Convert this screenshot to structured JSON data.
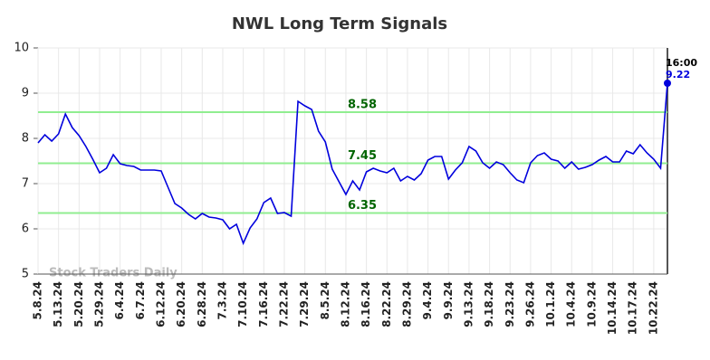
{
  "chart_data": {
    "type": "line",
    "title": "NWL Long Term Signals",
    "categories": [
      "5.8.24",
      null,
      null,
      "5.13.24",
      null,
      null,
      "5.20.24",
      null,
      null,
      "5.29.24",
      null,
      null,
      "6.4.24",
      null,
      null,
      "6.7.24",
      null,
      null,
      "6.12.24",
      null,
      null,
      "6.20.24",
      null,
      null,
      "6.28.24",
      null,
      null,
      "7.3.24",
      null,
      null,
      "7.10.24",
      null,
      null,
      "7.16.24",
      null,
      null,
      "7.22.24",
      null,
      null,
      "7.29.24",
      null,
      null,
      "8.5.24",
      null,
      null,
      "8.12.24",
      null,
      null,
      "8.16.24",
      null,
      null,
      "8.22.24",
      null,
      null,
      "8.29.24",
      null,
      null,
      "9.4.24",
      null,
      null,
      "9.9.24",
      null,
      null,
      "9.13.24",
      null,
      null,
      "9.18.24",
      null,
      null,
      "9.23.24",
      null,
      null,
      "9.26.24",
      null,
      null,
      "10.1.24",
      null,
      null,
      "10.4.24",
      null,
      null,
      "10.9.24",
      null,
      null,
      "10.14.24",
      null,
      null,
      "10.17.24",
      null,
      null,
      "10.22.24",
      null,
      null
    ],
    "values": [
      7.9,
      8.08,
      7.94,
      8.1,
      8.54,
      8.24,
      8.06,
      7.82,
      7.54,
      7.24,
      7.34,
      7.64,
      7.44,
      7.4,
      7.38,
      7.3,
      7.3,
      7.3,
      7.28,
      6.92,
      6.56,
      6.46,
      6.32,
      6.22,
      6.34,
      6.26,
      6.24,
      6.2,
      6.0,
      6.1,
      5.68,
      6.02,
      6.22,
      6.58,
      6.68,
      6.34,
      6.36,
      6.28,
      8.82,
      8.72,
      8.64,
      8.16,
      7.92,
      7.32,
      7.04,
      6.76,
      7.06,
      6.86,
      7.26,
      7.34,
      7.28,
      7.24,
      7.34,
      7.06,
      7.16,
      7.08,
      7.22,
      7.52,
      7.6,
      7.6,
      7.1,
      7.3,
      7.46,
      7.82,
      7.72,
      7.46,
      7.34,
      7.48,
      7.42,
      7.24,
      7.08,
      7.02,
      7.46,
      7.62,
      7.68,
      7.54,
      7.5,
      7.34,
      7.48,
      7.32,
      7.36,
      7.42,
      7.52,
      7.6,
      7.48,
      7.48,
      7.72,
      7.66,
      7.86,
      7.68,
      7.54,
      7.34,
      9.22
    ],
    "color": "#0000dd",
    "ylim": [
      5,
      10
    ],
    "yticks": [
      5,
      6,
      7,
      8,
      9,
      10
    ],
    "grid": true,
    "hlines": [
      8.58,
      7.45,
      6.35
    ],
    "hline_color": "#90ee90",
    "hline_label_color": "#006400",
    "last_label": "16:00",
    "watermark": "Stock Traders Daily"
  }
}
